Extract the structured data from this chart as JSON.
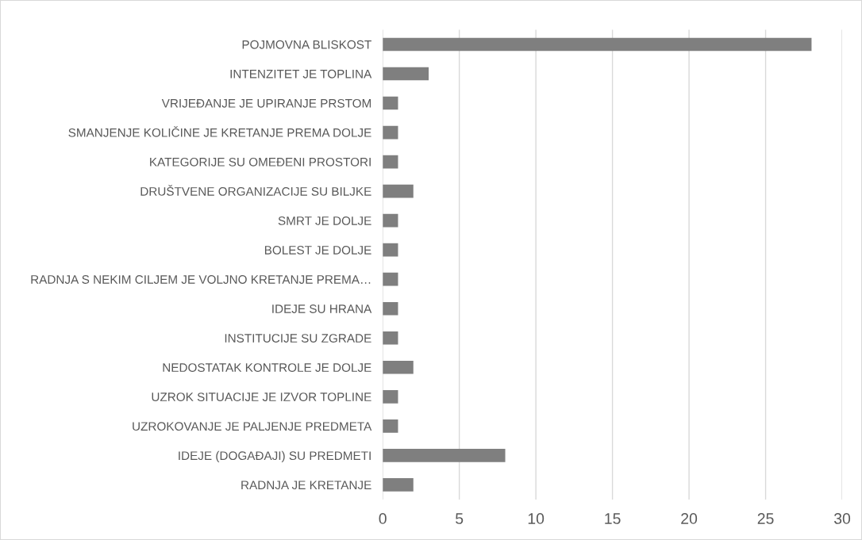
{
  "chart_data": {
    "type": "bar",
    "orientation": "horizontal",
    "categories": [
      "POJMOVNA BLISKOST",
      "INTENZITET JE TOPLINA",
      "VRIJEĐANJE JE UPIRANJE PRSTOM",
      "SMANJENJE KOLIČINE JE KRETANJE PREMA DOLJE",
      "KATEGORIJE SU OMEĐENI PROSTORI",
      "DRUŠTVENE ORGANIZACIJE SU BILJKE",
      "SMRT JE DOLJE",
      "BOLEST JE DOLJE",
      "RADNJA S NEKIM CILJEM JE VOLJNO KRETANJE PREMA…",
      "IDEJE SU HRANA",
      "INSTITUCIJE SU ZGRADE",
      "NEDOSTATAK KONTROLE JE DOLJE",
      "UZROK SITUACIJE JE IZVOR TOPLINE",
      "UZROKOVANJE JE PALJENJE PREDMETA",
      "IDEJE (DOGAĐAJI) SU PREDMETI",
      "RADNJA JE KRETANJE"
    ],
    "values": [
      28,
      3,
      1,
      1,
      1,
      2,
      1,
      1,
      1,
      1,
      1,
      2,
      1,
      1,
      8,
      2
    ],
    "color": "#7f7f7f",
    "xlim": [
      0,
      30
    ],
    "xticks": [
      0,
      5,
      10,
      15,
      20,
      25,
      30
    ],
    "grid": "x",
    "legend": false
  }
}
